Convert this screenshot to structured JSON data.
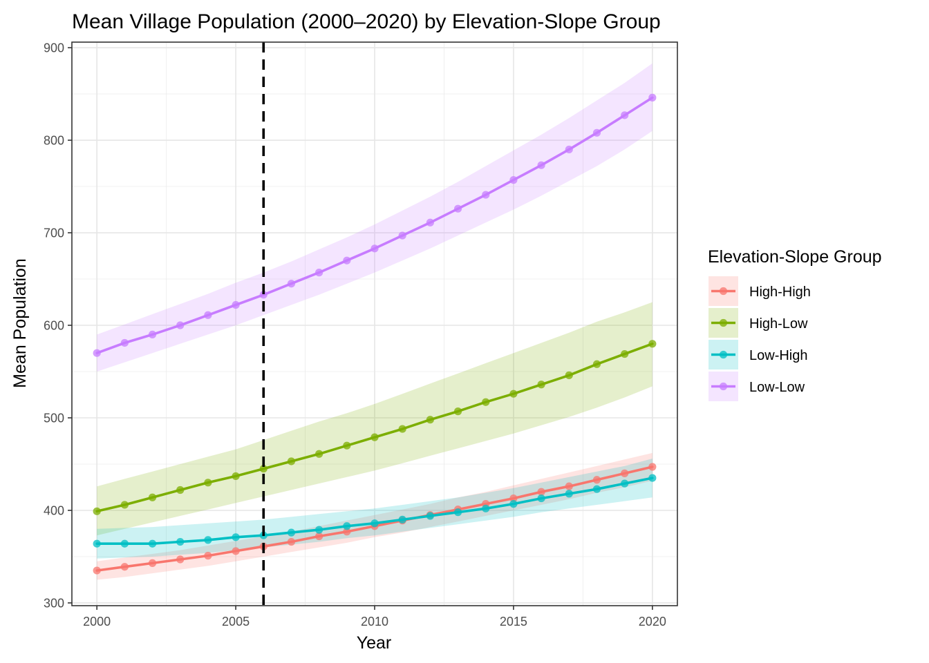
{
  "chart_data": {
    "type": "line",
    "title": "Mean Village Population (2000–2020) by Elevation-Slope Group",
    "xlabel": "Year",
    "ylabel": "Mean Population",
    "xlim": [
      1999.1,
      2020.9
    ],
    "ylim": [
      297,
      906
    ],
    "x_ticks": [
      2000,
      2005,
      2010,
      2015,
      2020
    ],
    "x_tick_labels": [
      "2000",
      "2005",
      "2010",
      "2015",
      "2020"
    ],
    "y_ticks": [
      300,
      400,
      500,
      600,
      700,
      800,
      900
    ],
    "y_tick_labels": [
      "300",
      "400",
      "500",
      "600",
      "700",
      "800",
      "900"
    ],
    "grid": true,
    "vline": {
      "x": 2006,
      "style": "dashed"
    },
    "legend": {
      "title": "Elevation-Slope Group",
      "position": "right"
    },
    "x": [
      2000,
      2001,
      2002,
      2003,
      2004,
      2005,
      2006,
      2007,
      2008,
      2009,
      2010,
      2011,
      2012,
      2013,
      2014,
      2015,
      2016,
      2017,
      2018,
      2019,
      2020
    ],
    "series": [
      {
        "name": "High-High",
        "color": "#F8766D",
        "values": [
          335,
          339,
          343,
          347,
          351,
          356,
          361,
          366,
          372,
          377,
          383,
          389,
          395,
          401,
          407,
          413,
          420,
          426,
          433,
          440,
          447
        ],
        "lower": [
          325,
          328,
          332,
          336,
          340,
          345,
          350,
          355,
          360,
          365,
          371,
          376,
          382,
          388,
          394,
          400,
          406,
          412,
          419,
          425,
          432
        ],
        "upper": [
          345,
          349,
          353,
          357,
          362,
          367,
          372,
          377,
          383,
          389,
          395,
          401,
          407,
          414,
          420,
          427,
          434,
          441,
          448,
          455,
          462
        ]
      },
      {
        "name": "High-Low",
        "color": "#7CAE00",
        "values": [
          399,
          406,
          414,
          422,
          430,
          437,
          445,
          453,
          461,
          470,
          479,
          488,
          498,
          507,
          517,
          526,
          536,
          546,
          558,
          569,
          580
        ],
        "lower": [
          373,
          380,
          387,
          394,
          401,
          408,
          415,
          422,
          429,
          436,
          443,
          451,
          459,
          467,
          475,
          483,
          492,
          501,
          511,
          522,
          534
        ],
        "upper": [
          426,
          434,
          442,
          450,
          458,
          466,
          476,
          486,
          496,
          505,
          515,
          526,
          537,
          548,
          559,
          570,
          581,
          592,
          604,
          614,
          625
        ]
      },
      {
        "name": "Low-High",
        "color": "#00BFC4",
        "values": [
          364,
          364,
          364,
          366,
          368,
          371,
          373,
          376,
          379,
          383,
          386,
          390,
          394,
          398,
          402,
          407,
          413,
          418,
          423,
          429,
          435
        ],
        "lower": [
          348,
          349,
          350,
          352,
          354,
          357,
          360,
          363,
          366,
          370,
          373,
          377,
          381,
          385,
          389,
          393,
          398,
          402,
          406,
          410,
          414
        ],
        "upper": [
          380,
          381,
          382,
          384,
          386,
          388,
          390,
          393,
          396,
          399,
          402,
          406,
          410,
          414,
          419,
          424,
          430,
          436,
          442,
          448,
          456
        ]
      },
      {
        "name": "Low-Low",
        "color": "#C77CFF",
        "values": [
          570,
          581,
          590,
          600,
          611,
          622,
          633,
          645,
          657,
          670,
          683,
          697,
          711,
          726,
          741,
          757,
          773,
          790,
          808,
          827,
          846
        ],
        "lower": [
          550,
          560,
          570,
          580,
          590,
          600,
          611,
          622,
          633,
          645,
          657,
          670,
          683,
          697,
          711,
          725,
          740,
          756,
          772,
          790,
          810
        ],
        "upper": [
          590,
          601,
          612,
          623,
          634,
          646,
          657,
          669,
          682,
          695,
          709,
          724,
          739,
          755,
          772,
          789,
          806,
          824,
          843,
          862,
          883
        ]
      }
    ]
  }
}
